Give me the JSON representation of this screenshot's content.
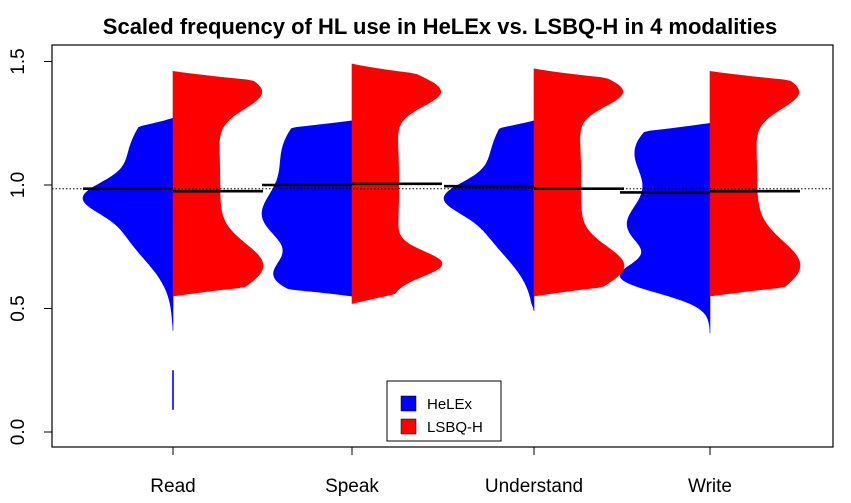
{
  "chart_data": {
    "type": "split-violin",
    "title": "Scaled frequency of HL use in HeLEx vs. LSBQ-H in 4 modalities",
    "xlabel": "",
    "ylabel": "",
    "categories": [
      "Read",
      "Speak",
      "Understand",
      "Write"
    ],
    "ylim": [
      -0.02,
      1.55
    ],
    "yticks": [
      0.0,
      0.5,
      1.0,
      1.5
    ],
    "ytick_labels": [
      "0.0",
      "0.5",
      "1.0",
      "1.5"
    ],
    "reference_line": {
      "y": 0.985,
      "style": "dotted"
    },
    "legend": {
      "placement": "bottom-center"
    },
    "colors": {
      "HeLEx": "#0000ff",
      "LSBQ-H": "#ff0000",
      "median": "#000000"
    },
    "series": [
      {
        "name": "HeLEx",
        "side": "left",
        "medians": [
          0.985,
          1.0,
          0.995,
          0.97
        ],
        "ranges": [
          [
            0.41,
            1.27
          ],
          [
            0.55,
            1.26
          ],
          [
            0.49,
            1.26
          ],
          [
            0.4,
            1.25
          ]
        ],
        "outliers": [
          [
            [
              0.09,
              0.25
            ]
          ],
          [],
          [],
          []
        ],
        "modes": [
          [
            [
              1.13,
              0.16
            ],
            [
              0.82,
              0.13
            ],
            [
              0.95,
              0.06
            ]
          ],
          [
            [
              1.14,
              0.18
            ],
            [
              0.85,
              0.11
            ],
            [
              0.62,
              0.08
            ]
          ],
          [
            [
              1.13,
              0.17
            ],
            [
              0.83,
              0.13
            ],
            [
              0.95,
              0.06
            ]
          ],
          [
            [
              1.14,
              0.15
            ],
            [
              0.82,
              0.11
            ],
            [
              0.62,
              0.06
            ]
          ]
        ]
      },
      {
        "name": "LSBQ-H",
        "side": "right",
        "medians": [
          0.975,
          1.005,
          0.985,
          0.975
        ],
        "ranges": [
          [
            0.55,
            1.46
          ],
          [
            0.52,
            1.49
          ],
          [
            0.55,
            1.47
          ],
          [
            0.55,
            1.46
          ]
        ],
        "outliers": [
          [],
          [],
          [],
          []
        ],
        "modes": [
          [
            [
              1.0,
              0.8
            ],
            [
              0.67,
              0.09
            ],
            [
              1.38,
              0.07
            ]
          ],
          [
            [
              1.0,
              0.82
            ],
            [
              0.68,
              0.05
            ],
            [
              1.38,
              0.06
            ]
          ],
          [
            [
              1.0,
              0.8
            ],
            [
              0.67,
              0.08
            ],
            [
              1.38,
              0.06
            ]
          ],
          [
            [
              1.0,
              0.8
            ],
            [
              0.67,
              0.1
            ],
            [
              1.38,
              0.07
            ]
          ]
        ]
      }
    ]
  }
}
